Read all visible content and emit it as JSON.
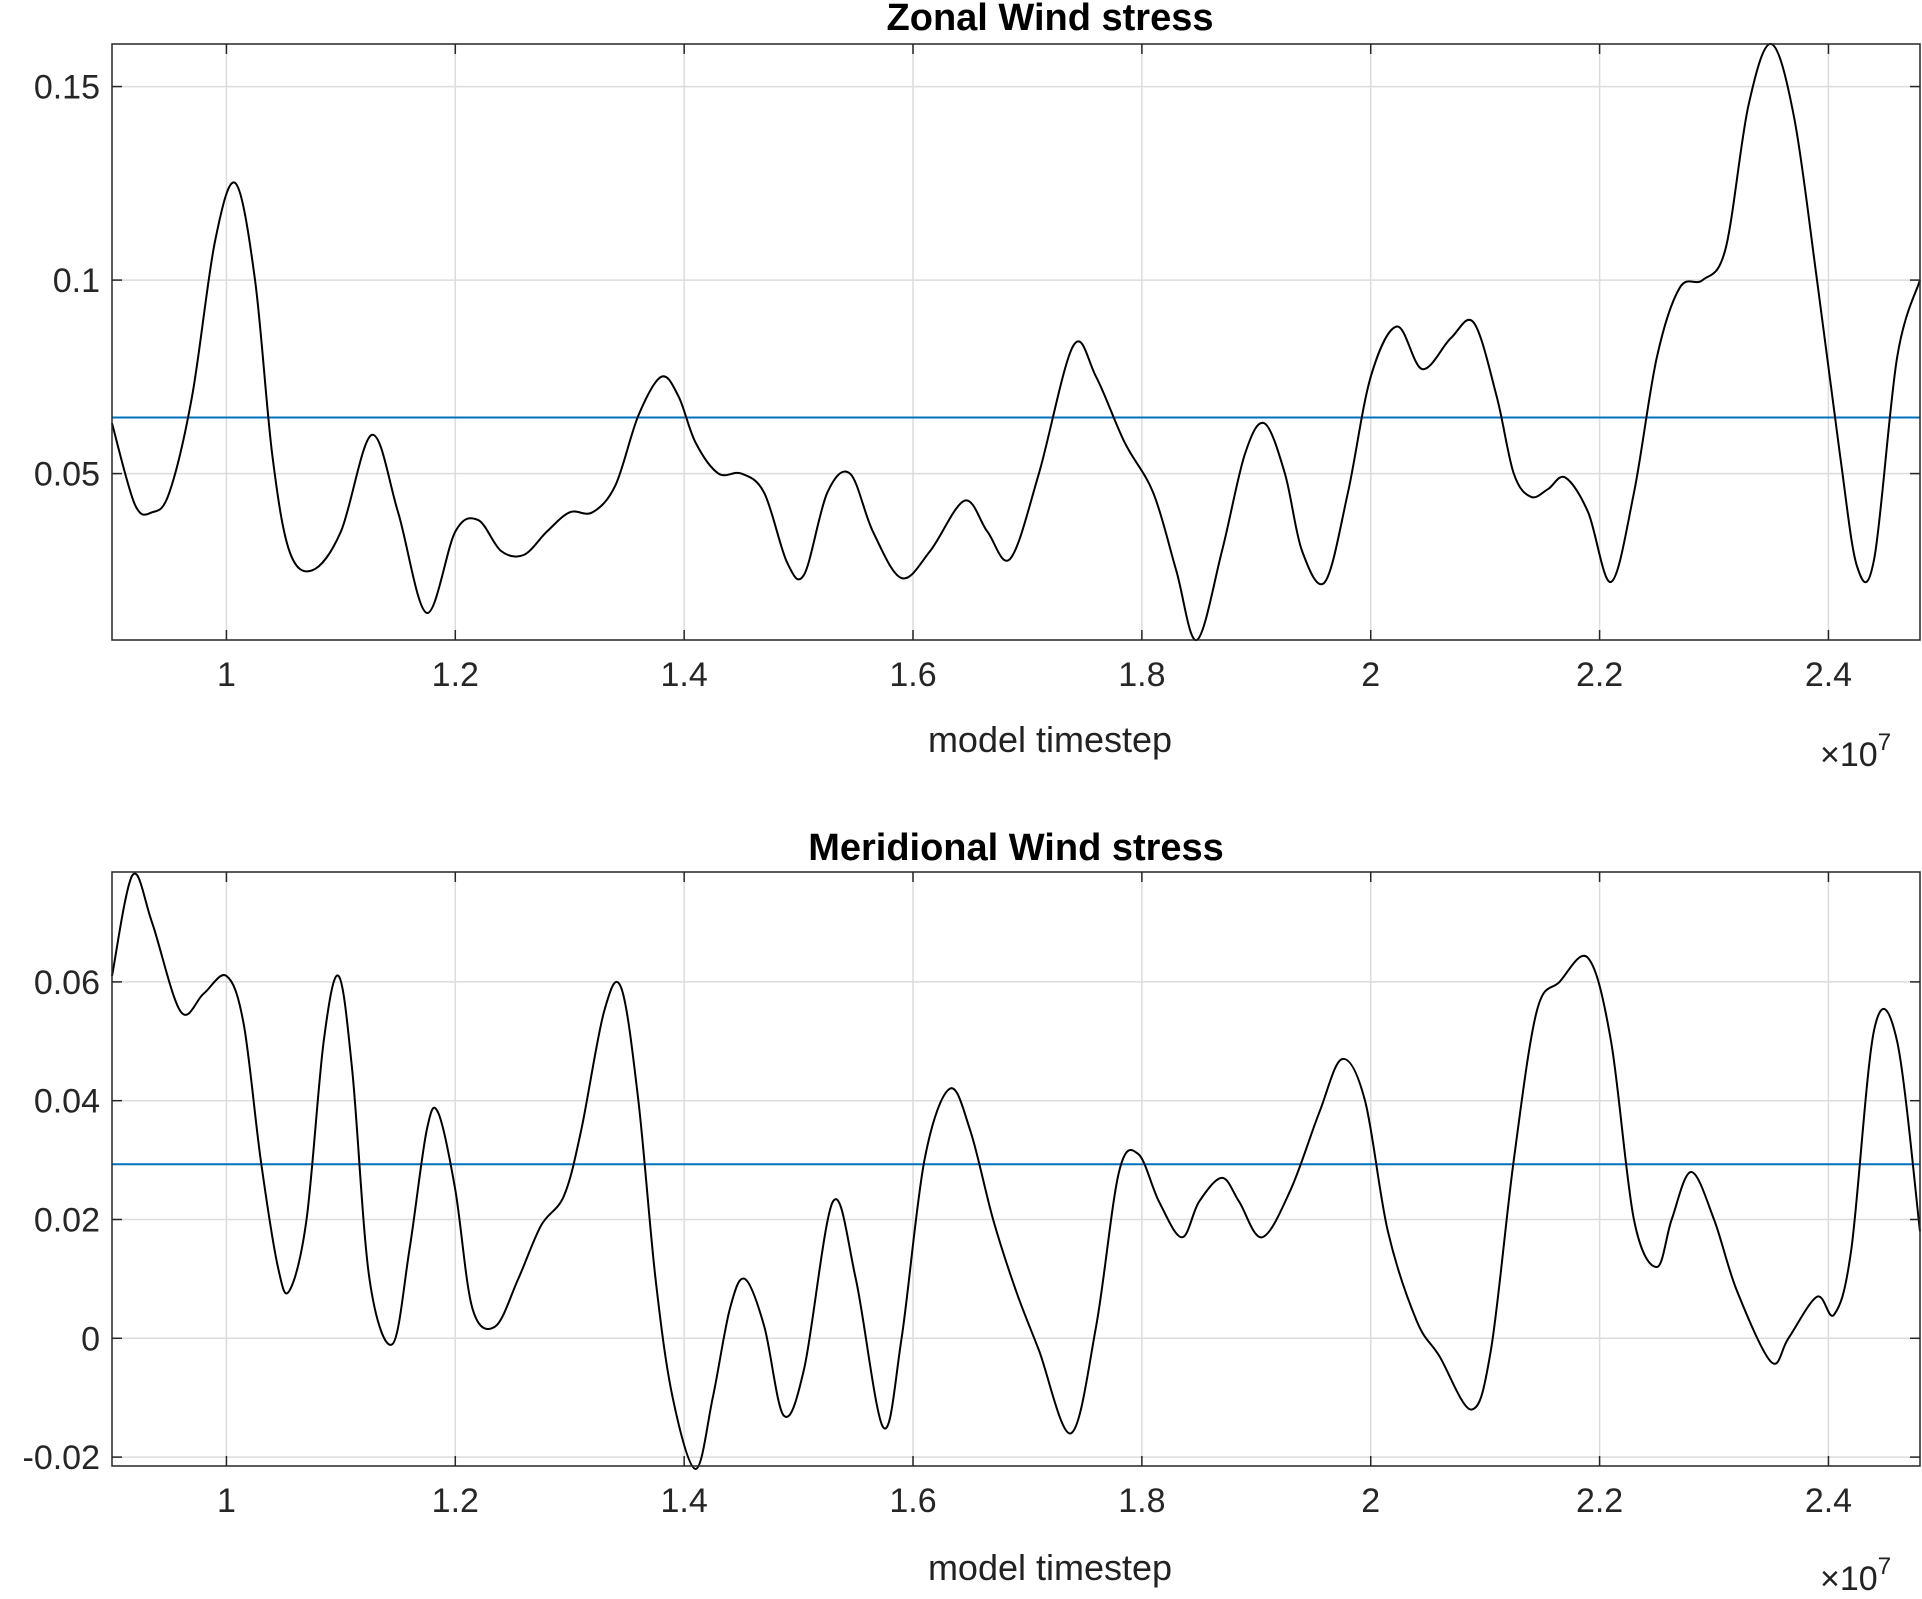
{
  "chart_data": [
    {
      "type": "line",
      "title": "Zonal Wind stress",
      "xlabel": "model timestep",
      "ylabel": "",
      "x_exponent_label": "×10",
      "x_exponent_power": "7",
      "xlim": [
        0.9,
        2.48
      ],
      "ylim": [
        0.007,
        0.161
      ],
      "xticks": [
        1,
        1.2,
        1.4,
        1.6,
        1.8,
        2,
        2.2,
        2.4
      ],
      "xtick_labels": [
        "1",
        "1.2",
        "1.4",
        "1.6",
        "1.8",
        "2",
        "2.2",
        "2.4"
      ],
      "yticks": [
        0.05,
        0.1,
        0.15
      ],
      "ytick_labels": [
        "0.05",
        "0.1",
        "0.15"
      ],
      "grid": true,
      "line_color": "#000000",
      "mean_line_color": "#0072BD",
      "mean_value": 0.0645,
      "series": [
        {
          "x": [
            0.9,
            0.92,
            0.935,
            0.95,
            0.97,
            0.99,
            1.008,
            1.025,
            1.04,
            1.055,
            1.075,
            1.1,
            1.127,
            1.15,
            1.175,
            1.2,
            1.22,
            1.24,
            1.26,
            1.28,
            1.3,
            1.32,
            1.34,
            1.36,
            1.38,
            1.395,
            1.41,
            1.43,
            1.45,
            1.47,
            1.49,
            1.505,
            1.525,
            1.545,
            1.565,
            1.59,
            1.615,
            1.645,
            1.665,
            1.685,
            1.71,
            1.74,
            1.76,
            1.785,
            1.81,
            1.83,
            1.848,
            1.87,
            1.89,
            1.907,
            1.925,
            1.94,
            1.96,
            1.98,
            2.0,
            2.023,
            2.045,
            2.07,
            2.09,
            2.11,
            2.125,
            2.14,
            2.155,
            2.17,
            2.19,
            2.21,
            2.23,
            2.25,
            2.27,
            2.29,
            2.31,
            2.33,
            2.35,
            2.37,
            2.39,
            2.41,
            2.425,
            2.44,
            2.46,
            2.48
          ],
          "y": [
            0.063,
            0.042,
            0.04,
            0.045,
            0.07,
            0.11,
            0.125,
            0.1,
            0.055,
            0.03,
            0.025,
            0.035,
            0.06,
            0.04,
            0.014,
            0.035,
            0.038,
            0.03,
            0.029,
            0.035,
            0.04,
            0.04,
            0.047,
            0.065,
            0.075,
            0.07,
            0.058,
            0.05,
            0.05,
            0.045,
            0.027,
            0.024,
            0.045,
            0.05,
            0.035,
            0.023,
            0.03,
            0.043,
            0.035,
            0.028,
            0.05,
            0.083,
            0.075,
            0.058,
            0.045,
            0.025,
            0.007,
            0.03,
            0.055,
            0.063,
            0.05,
            0.03,
            0.022,
            0.045,
            0.075,
            0.088,
            0.077,
            0.085,
            0.089,
            0.07,
            0.05,
            0.044,
            0.046,
            0.049,
            0.04,
            0.022,
            0.045,
            0.08,
            0.098,
            0.1,
            0.108,
            0.145,
            0.161,
            0.142,
            0.1,
            0.055,
            0.026,
            0.028,
            0.08,
            0.1
          ]
        }
      ]
    },
    {
      "type": "line",
      "title": "Meridional Wind stress",
      "xlabel": "model timestep",
      "ylabel": "",
      "x_exponent_label": "×10",
      "x_exponent_power": "7",
      "xlim": [
        0.9,
        2.48
      ],
      "ylim": [
        -0.0215,
        0.0785
      ],
      "xticks": [
        1,
        1.2,
        1.4,
        1.6,
        1.8,
        2,
        2.2,
        2.4
      ],
      "xtick_labels": [
        "1",
        "1.2",
        "1.4",
        "1.6",
        "1.8",
        "2",
        "2.2",
        "2.4"
      ],
      "yticks": [
        -0.02,
        0,
        0.02,
        0.04,
        0.06
      ],
      "ytick_labels": [
        "-0.02",
        "0",
        "0.02",
        "0.04",
        "0.06"
      ],
      "grid": true,
      "line_color": "#000000",
      "mean_line_color": "#0072BD",
      "mean_value": 0.0293,
      "series": [
        {
          "x": [
            0.9,
            0.918,
            0.935,
            0.96,
            0.98,
            1.0,
            1.015,
            1.03,
            1.045,
            1.055,
            1.07,
            1.085,
            1.098,
            1.11,
            1.125,
            1.145,
            1.16,
            1.175,
            1.185,
            1.2,
            1.215,
            1.235,
            1.255,
            1.275,
            1.295,
            1.31,
            1.33,
            1.345,
            1.36,
            1.375,
            1.39,
            1.41,
            1.425,
            1.44,
            1.453,
            1.47,
            1.487,
            1.505,
            1.53,
            1.55,
            1.574,
            1.59,
            1.61,
            1.632,
            1.65,
            1.67,
            1.69,
            1.71,
            1.738,
            1.76,
            1.78,
            1.797,
            1.815,
            1.835,
            1.85,
            1.87,
            1.885,
            1.905,
            1.93,
            1.955,
            1.975,
            1.995,
            2.015,
            2.04,
            2.06,
            2.088,
            2.105,
            2.125,
            2.145,
            2.165,
            2.19,
            2.21,
            2.23,
            2.25,
            2.263,
            2.28,
            2.3,
            2.32,
            2.35,
            2.365,
            2.39,
            2.405,
            2.42,
            2.44,
            2.46,
            2.48
          ],
          "y": [
            0.061,
            0.078,
            0.07,
            0.055,
            0.058,
            0.061,
            0.053,
            0.03,
            0.012,
            0.008,
            0.02,
            0.05,
            0.061,
            0.045,
            0.01,
            -0.001,
            0.015,
            0.035,
            0.038,
            0.025,
            0.005,
            0.002,
            0.01,
            0.019,
            0.024,
            0.035,
            0.055,
            0.059,
            0.04,
            0.01,
            -0.01,
            -0.022,
            -0.01,
            0.005,
            0.01,
            0.002,
            -0.013,
            -0.005,
            0.023,
            0.01,
            -0.015,
            0.0,
            0.03,
            0.042,
            0.035,
            0.02,
            0.008,
            -0.002,
            -0.016,
            0.002,
            0.028,
            0.031,
            0.023,
            0.017,
            0.023,
            0.027,
            0.023,
            0.017,
            0.025,
            0.038,
            0.047,
            0.04,
            0.018,
            0.003,
            -0.003,
            -0.012,
            -0.002,
            0.03,
            0.055,
            0.06,
            0.064,
            0.05,
            0.02,
            0.012,
            0.02,
            0.028,
            0.02,
            0.008,
            -0.004,
            0.0,
            0.007,
            0.004,
            0.015,
            0.052,
            0.05,
            0.018
          ]
        }
      ]
    }
  ]
}
